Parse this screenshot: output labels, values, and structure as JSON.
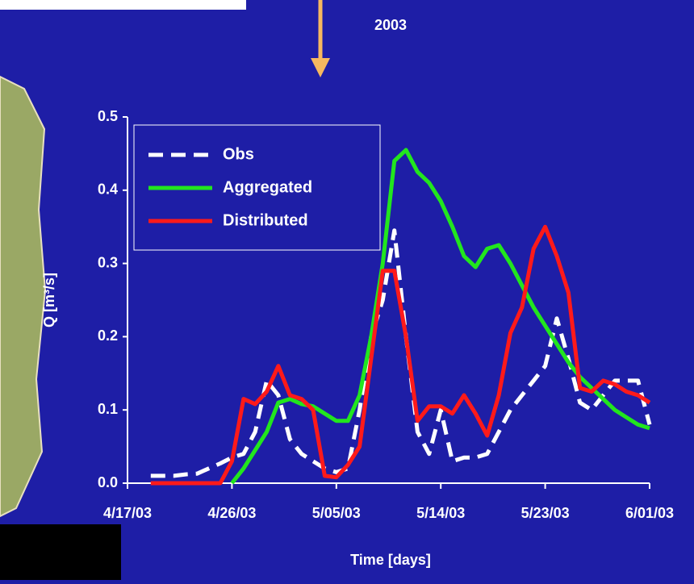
{
  "chart_data": {
    "type": "line",
    "title": "2003",
    "x_label": "Time [days]",
    "y_label": "Q [m³/s]",
    "x": [
      "2003-04-19",
      "2003-04-20",
      "2003-04-21",
      "2003-04-22",
      "2003-04-23",
      "2003-04-24",
      "2003-04-25",
      "2003-04-26",
      "2003-04-27",
      "2003-04-28",
      "2003-04-29",
      "2003-04-30",
      "2003-05-01",
      "2003-05-02",
      "2003-05-03",
      "2003-05-04",
      "2003-05-05",
      "2003-05-06",
      "2003-05-07",
      "2003-05-08",
      "2003-05-09",
      "2003-05-10",
      "2003-05-11",
      "2003-05-12",
      "2003-05-13",
      "2003-05-14",
      "2003-05-15",
      "2003-05-16",
      "2003-05-17",
      "2003-05-18",
      "2003-05-19",
      "2003-05-20",
      "2003-05-21",
      "2003-05-22",
      "2003-05-23",
      "2003-05-24",
      "2003-05-25",
      "2003-05-26",
      "2003-05-27",
      "2003-05-28",
      "2003-05-29",
      "2003-05-30",
      "2003-05-31",
      "2003-06-01"
    ],
    "series": [
      {
        "name": "Obs",
        "color": "#ffffff",
        "dashed": true,
        "values": [
          0.01,
          0.01,
          0.01,
          0.012,
          0.013,
          0.02,
          0.027,
          0.035,
          0.04,
          0.07,
          0.14,
          0.12,
          0.06,
          0.04,
          0.03,
          0.02,
          0.015,
          0.02,
          0.1,
          0.2,
          0.25,
          0.345,
          0.2,
          0.07,
          0.04,
          0.1,
          0.03,
          0.035,
          0.035,
          0.04,
          0.07,
          0.1,
          0.12,
          0.14,
          0.16,
          0.225,
          0.17,
          0.11,
          0.1,
          0.12,
          0.14,
          0.14,
          0.14,
          0.08
        ]
      },
      {
        "name": "Aggregated",
        "color": "#22e61e",
        "dashed": false,
        "values": [
          null,
          null,
          null,
          null,
          null,
          null,
          null,
          0.0,
          0.02,
          0.045,
          0.07,
          0.11,
          0.115,
          0.108,
          0.105,
          0.095,
          0.085,
          0.085,
          0.12,
          0.2,
          0.3,
          0.44,
          0.455,
          0.425,
          0.41,
          0.385,
          0.35,
          0.31,
          0.295,
          0.32,
          0.325,
          0.3,
          0.27,
          0.24,
          0.215,
          0.19,
          0.165,
          0.145,
          0.13,
          0.115,
          0.1,
          0.09,
          0.08,
          0.075
        ]
      },
      {
        "name": "Distributed",
        "color": "#ff1a1a",
        "dashed": false,
        "values": [
          0,
          0,
          0,
          0,
          0,
          0,
          0,
          0.03,
          0.115,
          0.108,
          0.125,
          0.16,
          0.12,
          0.115,
          0.1,
          0.01,
          0.008,
          0.025,
          0.05,
          0.17,
          0.29,
          0.29,
          0.2,
          0.085,
          0.105,
          0.105,
          0.095,
          0.12,
          0.095,
          0.065,
          0.12,
          0.205,
          0.24,
          0.32,
          0.35,
          0.31,
          0.26,
          0.13,
          0.125,
          0.14,
          0.135,
          0.125,
          0.12,
          0.11
        ]
      }
    ],
    "xlim": [
      "2003-04-17",
      "2003-06-01"
    ],
    "xticks": [
      {
        "value": "2003-04-17",
        "label": "4/17/03"
      },
      {
        "value": "2003-04-26",
        "label": "4/26/03"
      },
      {
        "value": "2003-05-05",
        "label": "5/05/03"
      },
      {
        "value": "2003-05-14",
        "label": "5/14/03"
      },
      {
        "value": "2003-05-23",
        "label": "5/23/03"
      },
      {
        "value": "2003-06-01",
        "label": "6/01/03"
      }
    ],
    "ylim": [
      0,
      0.5
    ],
    "yticks": [
      {
        "value": 0,
        "label": "0.0"
      },
      0.1,
      0.2,
      0.3,
      0.4,
      0.5
    ],
    "legend": "upper-left",
    "grid": false
  }
}
